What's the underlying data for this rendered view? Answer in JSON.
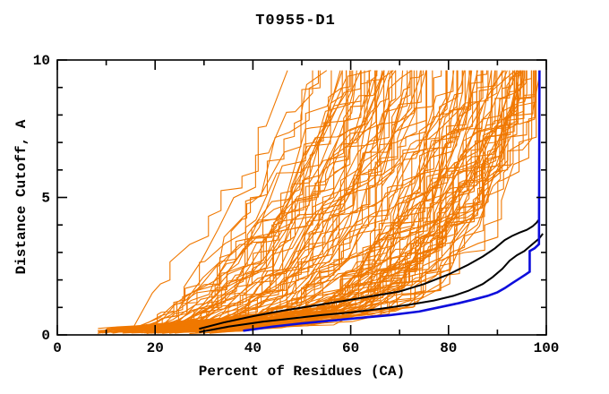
{
  "chart_data": {
    "type": "line",
    "title": "T0955-D1",
    "xlabel": "Percent of Residues (CA)",
    "ylabel": "Distance Cutoff, A",
    "xlim": [
      0,
      100
    ],
    "ylim": [
      0,
      10
    ],
    "xticks_major": [
      0,
      20,
      40,
      60,
      80,
      100
    ],
    "xticks_minor": [
      10,
      30,
      50,
      70,
      90
    ],
    "yticks_major": [
      0,
      5,
      10
    ],
    "yticks_minor": [
      1,
      2,
      3,
      4,
      6,
      7,
      8,
      9
    ],
    "grid": false,
    "legend": null,
    "colors": {
      "ensemble": "#f07800",
      "best_model": "#0d0ddc",
      "highlight": "#000000",
      "axis": "#000000",
      "background": "#ffffff"
    },
    "series": [
      {
        "name": "highlighted-model-1",
        "color_key": "highlight",
        "stroke_width": 2,
        "points": [
          [
            29,
            0.22
          ],
          [
            34,
            0.45
          ],
          [
            40,
            0.68
          ],
          [
            46,
            0.88
          ],
          [
            52,
            1.05
          ],
          [
            58,
            1.22
          ],
          [
            64,
            1.4
          ],
          [
            70,
            1.58
          ],
          [
            75,
            1.85
          ],
          [
            80,
            2.2
          ],
          [
            84,
            2.55
          ],
          [
            87,
            2.85
          ],
          [
            89.5,
            3.15
          ],
          [
            91.5,
            3.45
          ],
          [
            93,
            3.6
          ],
          [
            94.5,
            3.72
          ],
          [
            96,
            3.82
          ],
          [
            97.2,
            3.95
          ],
          [
            98,
            4.08
          ],
          [
            98.4,
            4.18
          ]
        ]
      },
      {
        "name": "highlighted-model-2",
        "color_key": "highlight",
        "stroke_width": 2,
        "points": [
          [
            29,
            0.1
          ],
          [
            35,
            0.3
          ],
          [
            42,
            0.48
          ],
          [
            48,
            0.6
          ],
          [
            54,
            0.72
          ],
          [
            60,
            0.82
          ],
          [
            66,
            0.95
          ],
          [
            72,
            1.1
          ],
          [
            77,
            1.25
          ],
          [
            81,
            1.42
          ],
          [
            84,
            1.6
          ],
          [
            87,
            1.85
          ],
          [
            89,
            2.1
          ],
          [
            91,
            2.4
          ],
          [
            92.5,
            2.7
          ],
          [
            94,
            2.9
          ],
          [
            95.5,
            3.05
          ],
          [
            96.5,
            3.2
          ],
          [
            97.5,
            3.35
          ],
          [
            98.5,
            3.5
          ],
          [
            99.3,
            3.68
          ]
        ]
      },
      {
        "name": "best-model-blue",
        "color_key": "best_model",
        "stroke_width": 2.6,
        "points": [
          [
            38,
            0.15
          ],
          [
            44,
            0.3
          ],
          [
            50,
            0.42
          ],
          [
            56,
            0.52
          ],
          [
            62,
            0.62
          ],
          [
            68,
            0.72
          ],
          [
            74,
            0.85
          ],
          [
            78,
            1.0
          ],
          [
            82,
            1.15
          ],
          [
            85,
            1.28
          ],
          [
            88,
            1.42
          ],
          [
            90,
            1.55
          ],
          [
            91.5,
            1.7
          ],
          [
            93,
            1.88
          ],
          [
            94.5,
            2.05
          ],
          [
            95.8,
            2.2
          ],
          [
            96.6,
            2.3
          ],
          [
            96.6,
            3.05
          ],
          [
            97.6,
            3.15
          ],
          [
            98.5,
            3.3
          ],
          [
            98.6,
            9.62
          ]
        ]
      }
    ],
    "orange_ensemble": {
      "description": "Ensemble of ~120 model accuracy curves (distance cutoff vs percent of CA residues); jagged monotone curves starting at 8-42% and rising to the 9.6 A cap between 46% and 100%",
      "count": 120,
      "seed": 1337,
      "x_start_range": [
        8,
        42
      ],
      "x_top_range": [
        46,
        99.3
      ],
      "y_cap": 9.62,
      "stroke_width": 1.1
    }
  }
}
